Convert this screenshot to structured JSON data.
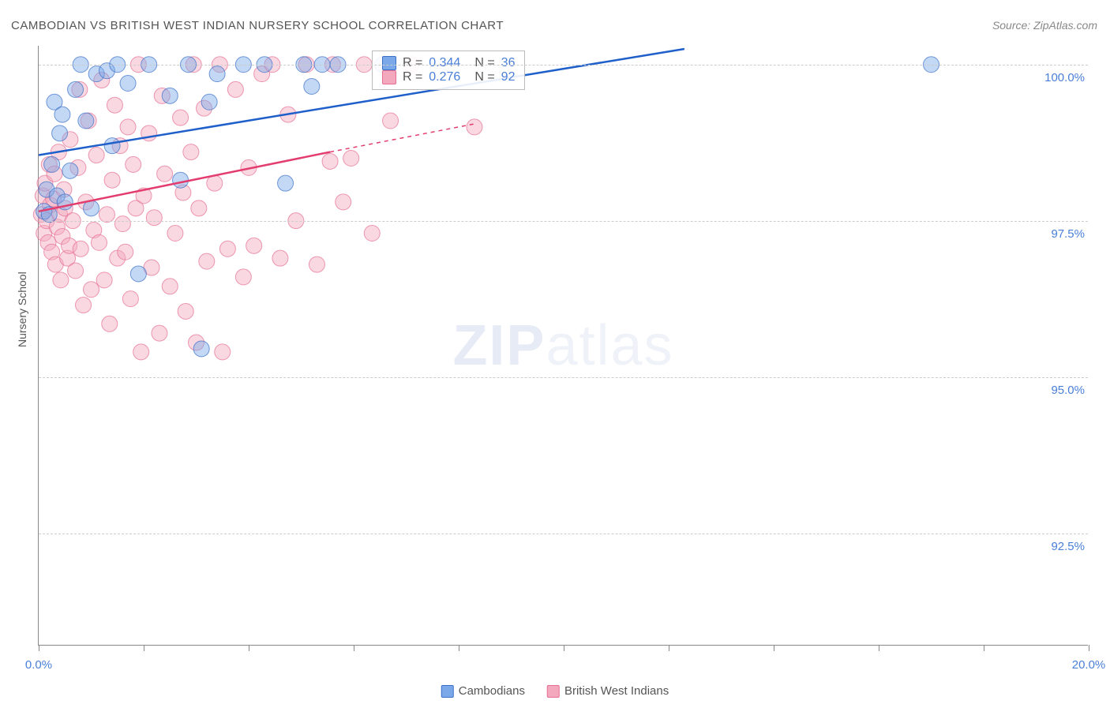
{
  "title": "CAMBODIAN VS BRITISH WEST INDIAN NURSERY SCHOOL CORRELATION CHART",
  "source": "Source: ZipAtlas.com",
  "ylabel": "Nursery School",
  "watermark_bold": "ZIP",
  "watermark_light": "atlas",
  "chart": {
    "type": "scatter",
    "background_color": "#ffffff",
    "grid_color": "#cccccc",
    "axis_color": "#888888",
    "text_color": "#555555",
    "value_color": "#4a7fd8",
    "xlim": [
      0.0,
      20.0
    ],
    "ylim": [
      90.7,
      100.3
    ],
    "ytick_values": [
      92.5,
      95.0,
      97.5,
      100.0
    ],
    "ytick_labels": [
      "92.5%",
      "95.0%",
      "97.5%",
      "100.0%"
    ],
    "xtick_values": [
      0.0,
      2.0,
      4.0,
      6.0,
      8.0,
      10.0,
      12.0,
      14.0,
      16.0,
      18.0,
      20.0
    ],
    "xtick_labels_shown": {
      "0.0": "0.0%",
      "20.0": "20.0%"
    },
    "marker_radius": 10,
    "marker_opacity": 0.45,
    "line_width": 2.5,
    "series": [
      {
        "name": "Cambodians",
        "color_fill": "#7aa8e8",
        "color_stroke": "#3a6fc8",
        "trend_color": "#1f5fc9",
        "R": 0.344,
        "N": 36,
        "trend_line": {
          "x1": 0.0,
          "y1": 98.55,
          "x2": 12.3,
          "y2": 100.25
        },
        "points": [
          [
            0.1,
            97.65
          ],
          [
            0.15,
            98.0
          ],
          [
            0.2,
            97.6
          ],
          [
            0.25,
            98.4
          ],
          [
            0.3,
            99.4
          ],
          [
            0.35,
            97.9
          ],
          [
            0.4,
            98.9
          ],
          [
            0.45,
            99.2
          ],
          [
            0.5,
            97.8
          ],
          [
            0.6,
            98.3
          ],
          [
            0.7,
            99.6
          ],
          [
            0.8,
            100.0
          ],
          [
            0.9,
            99.1
          ],
          [
            1.0,
            97.7
          ],
          [
            1.1,
            99.85
          ],
          [
            1.3,
            99.9
          ],
          [
            1.4,
            98.7
          ],
          [
            1.5,
            100.0
          ],
          [
            1.7,
            99.7
          ],
          [
            1.9,
            96.65
          ],
          [
            2.1,
            100.0
          ],
          [
            2.5,
            99.5
          ],
          [
            2.7,
            98.15
          ],
          [
            2.85,
            100.0
          ],
          [
            3.1,
            95.45
          ],
          [
            3.25,
            99.4
          ],
          [
            3.4,
            99.85
          ],
          [
            3.9,
            100.0
          ],
          [
            4.3,
            100.0
          ],
          [
            4.7,
            98.1
          ],
          [
            5.05,
            100.0
          ],
          [
            5.2,
            99.65
          ],
          [
            5.4,
            100.0
          ],
          [
            5.7,
            100.0
          ],
          [
            6.55,
            100.0
          ],
          [
            17.0,
            100.0
          ]
        ]
      },
      {
        "name": "British West Indians",
        "color_fill": "#f4a8bd",
        "color_stroke": "#e56f93",
        "trend_color": "#e23d6e",
        "R": 0.276,
        "N": 92,
        "trend_line_solid": {
          "x1": 0.0,
          "y1": 97.65,
          "x2": 5.55,
          "y2": 98.6
        },
        "trend_line_dashed": {
          "x1": 5.55,
          "y1": 98.6,
          "x2": 8.3,
          "y2": 99.05
        },
        "points": [
          [
            0.05,
            97.6
          ],
          [
            0.08,
            97.9
          ],
          [
            0.1,
            97.3
          ],
          [
            0.12,
            98.1
          ],
          [
            0.15,
            97.5
          ],
          [
            0.18,
            97.15
          ],
          [
            0.2,
            98.4
          ],
          [
            0.22,
            97.75
          ],
          [
            0.25,
            97.0
          ],
          [
            0.28,
            97.85
          ],
          [
            0.3,
            98.25
          ],
          [
            0.32,
            96.8
          ],
          [
            0.35,
            97.4
          ],
          [
            0.38,
            98.6
          ],
          [
            0.4,
            97.6
          ],
          [
            0.42,
            96.55
          ],
          [
            0.45,
            97.25
          ],
          [
            0.48,
            98.0
          ],
          [
            0.5,
            97.7
          ],
          [
            0.55,
            96.9
          ],
          [
            0.58,
            97.1
          ],
          [
            0.6,
            98.8
          ],
          [
            0.65,
            97.5
          ],
          [
            0.7,
            96.7
          ],
          [
            0.75,
            98.35
          ],
          [
            0.78,
            99.6
          ],
          [
            0.8,
            97.05
          ],
          [
            0.85,
            96.15
          ],
          [
            0.9,
            97.8
          ],
          [
            0.95,
            99.1
          ],
          [
            1.0,
            96.4
          ],
          [
            1.05,
            97.35
          ],
          [
            1.1,
            98.55
          ],
          [
            1.15,
            97.15
          ],
          [
            1.2,
            99.75
          ],
          [
            1.25,
            96.55
          ],
          [
            1.3,
            97.6
          ],
          [
            1.35,
            95.85
          ],
          [
            1.4,
            98.15
          ],
          [
            1.45,
            99.35
          ],
          [
            1.5,
            96.9
          ],
          [
            1.55,
            98.7
          ],
          [
            1.6,
            97.45
          ],
          [
            1.65,
            97.0
          ],
          [
            1.7,
            99.0
          ],
          [
            1.75,
            96.25
          ],
          [
            1.8,
            98.4
          ],
          [
            1.85,
            97.7
          ],
          [
            1.9,
            100.0
          ],
          [
            1.95,
            95.4
          ],
          [
            2.0,
            97.9
          ],
          [
            2.1,
            98.9
          ],
          [
            2.15,
            96.75
          ],
          [
            2.2,
            97.55
          ],
          [
            2.3,
            95.7
          ],
          [
            2.35,
            99.5
          ],
          [
            2.4,
            98.25
          ],
          [
            2.5,
            96.45
          ],
          [
            2.6,
            97.3
          ],
          [
            2.7,
            99.15
          ],
          [
            2.75,
            97.95
          ],
          [
            2.8,
            96.05
          ],
          [
            2.9,
            98.6
          ],
          [
            2.95,
            100.0
          ],
          [
            3.0,
            95.55
          ],
          [
            3.05,
            97.7
          ],
          [
            3.15,
            99.3
          ],
          [
            3.2,
            96.85
          ],
          [
            3.35,
            98.1
          ],
          [
            3.45,
            100.0
          ],
          [
            3.5,
            95.4
          ],
          [
            3.6,
            97.05
          ],
          [
            3.75,
            99.6
          ],
          [
            3.9,
            96.6
          ],
          [
            4.0,
            98.35
          ],
          [
            4.1,
            97.1
          ],
          [
            4.25,
            99.85
          ],
          [
            4.45,
            100.0
          ],
          [
            4.6,
            96.9
          ],
          [
            4.75,
            99.2
          ],
          [
            4.9,
            97.5
          ],
          [
            5.1,
            100.0
          ],
          [
            5.3,
            96.8
          ],
          [
            5.55,
            98.45
          ],
          [
            5.6,
            100.0
          ],
          [
            5.8,
            97.8
          ],
          [
            5.95,
            98.5
          ],
          [
            6.2,
            100.0
          ],
          [
            6.35,
            97.3
          ],
          [
            6.7,
            99.1
          ],
          [
            7.1,
            100.0
          ],
          [
            8.3,
            99.0
          ]
        ]
      }
    ]
  },
  "corr_box": {
    "rows": [
      {
        "swatch_fill": "#7aa8e8",
        "swatch_stroke": "#3a6fc8",
        "R_label": "R =",
        "R": "0.344",
        "N_label": "N =",
        "N": "36"
      },
      {
        "swatch_fill": "#f4a8bd",
        "swatch_stroke": "#e56f93",
        "R_label": "R =",
        "R": "0.276",
        "N_label": "N =",
        "N": "92"
      }
    ]
  },
  "legend": [
    {
      "swatch_fill": "#7aa8e8",
      "swatch_stroke": "#3a6fc8",
      "label": "Cambodians"
    },
    {
      "swatch_fill": "#f4a8bd",
      "swatch_stroke": "#e56f93",
      "label": "British West Indians"
    }
  ]
}
